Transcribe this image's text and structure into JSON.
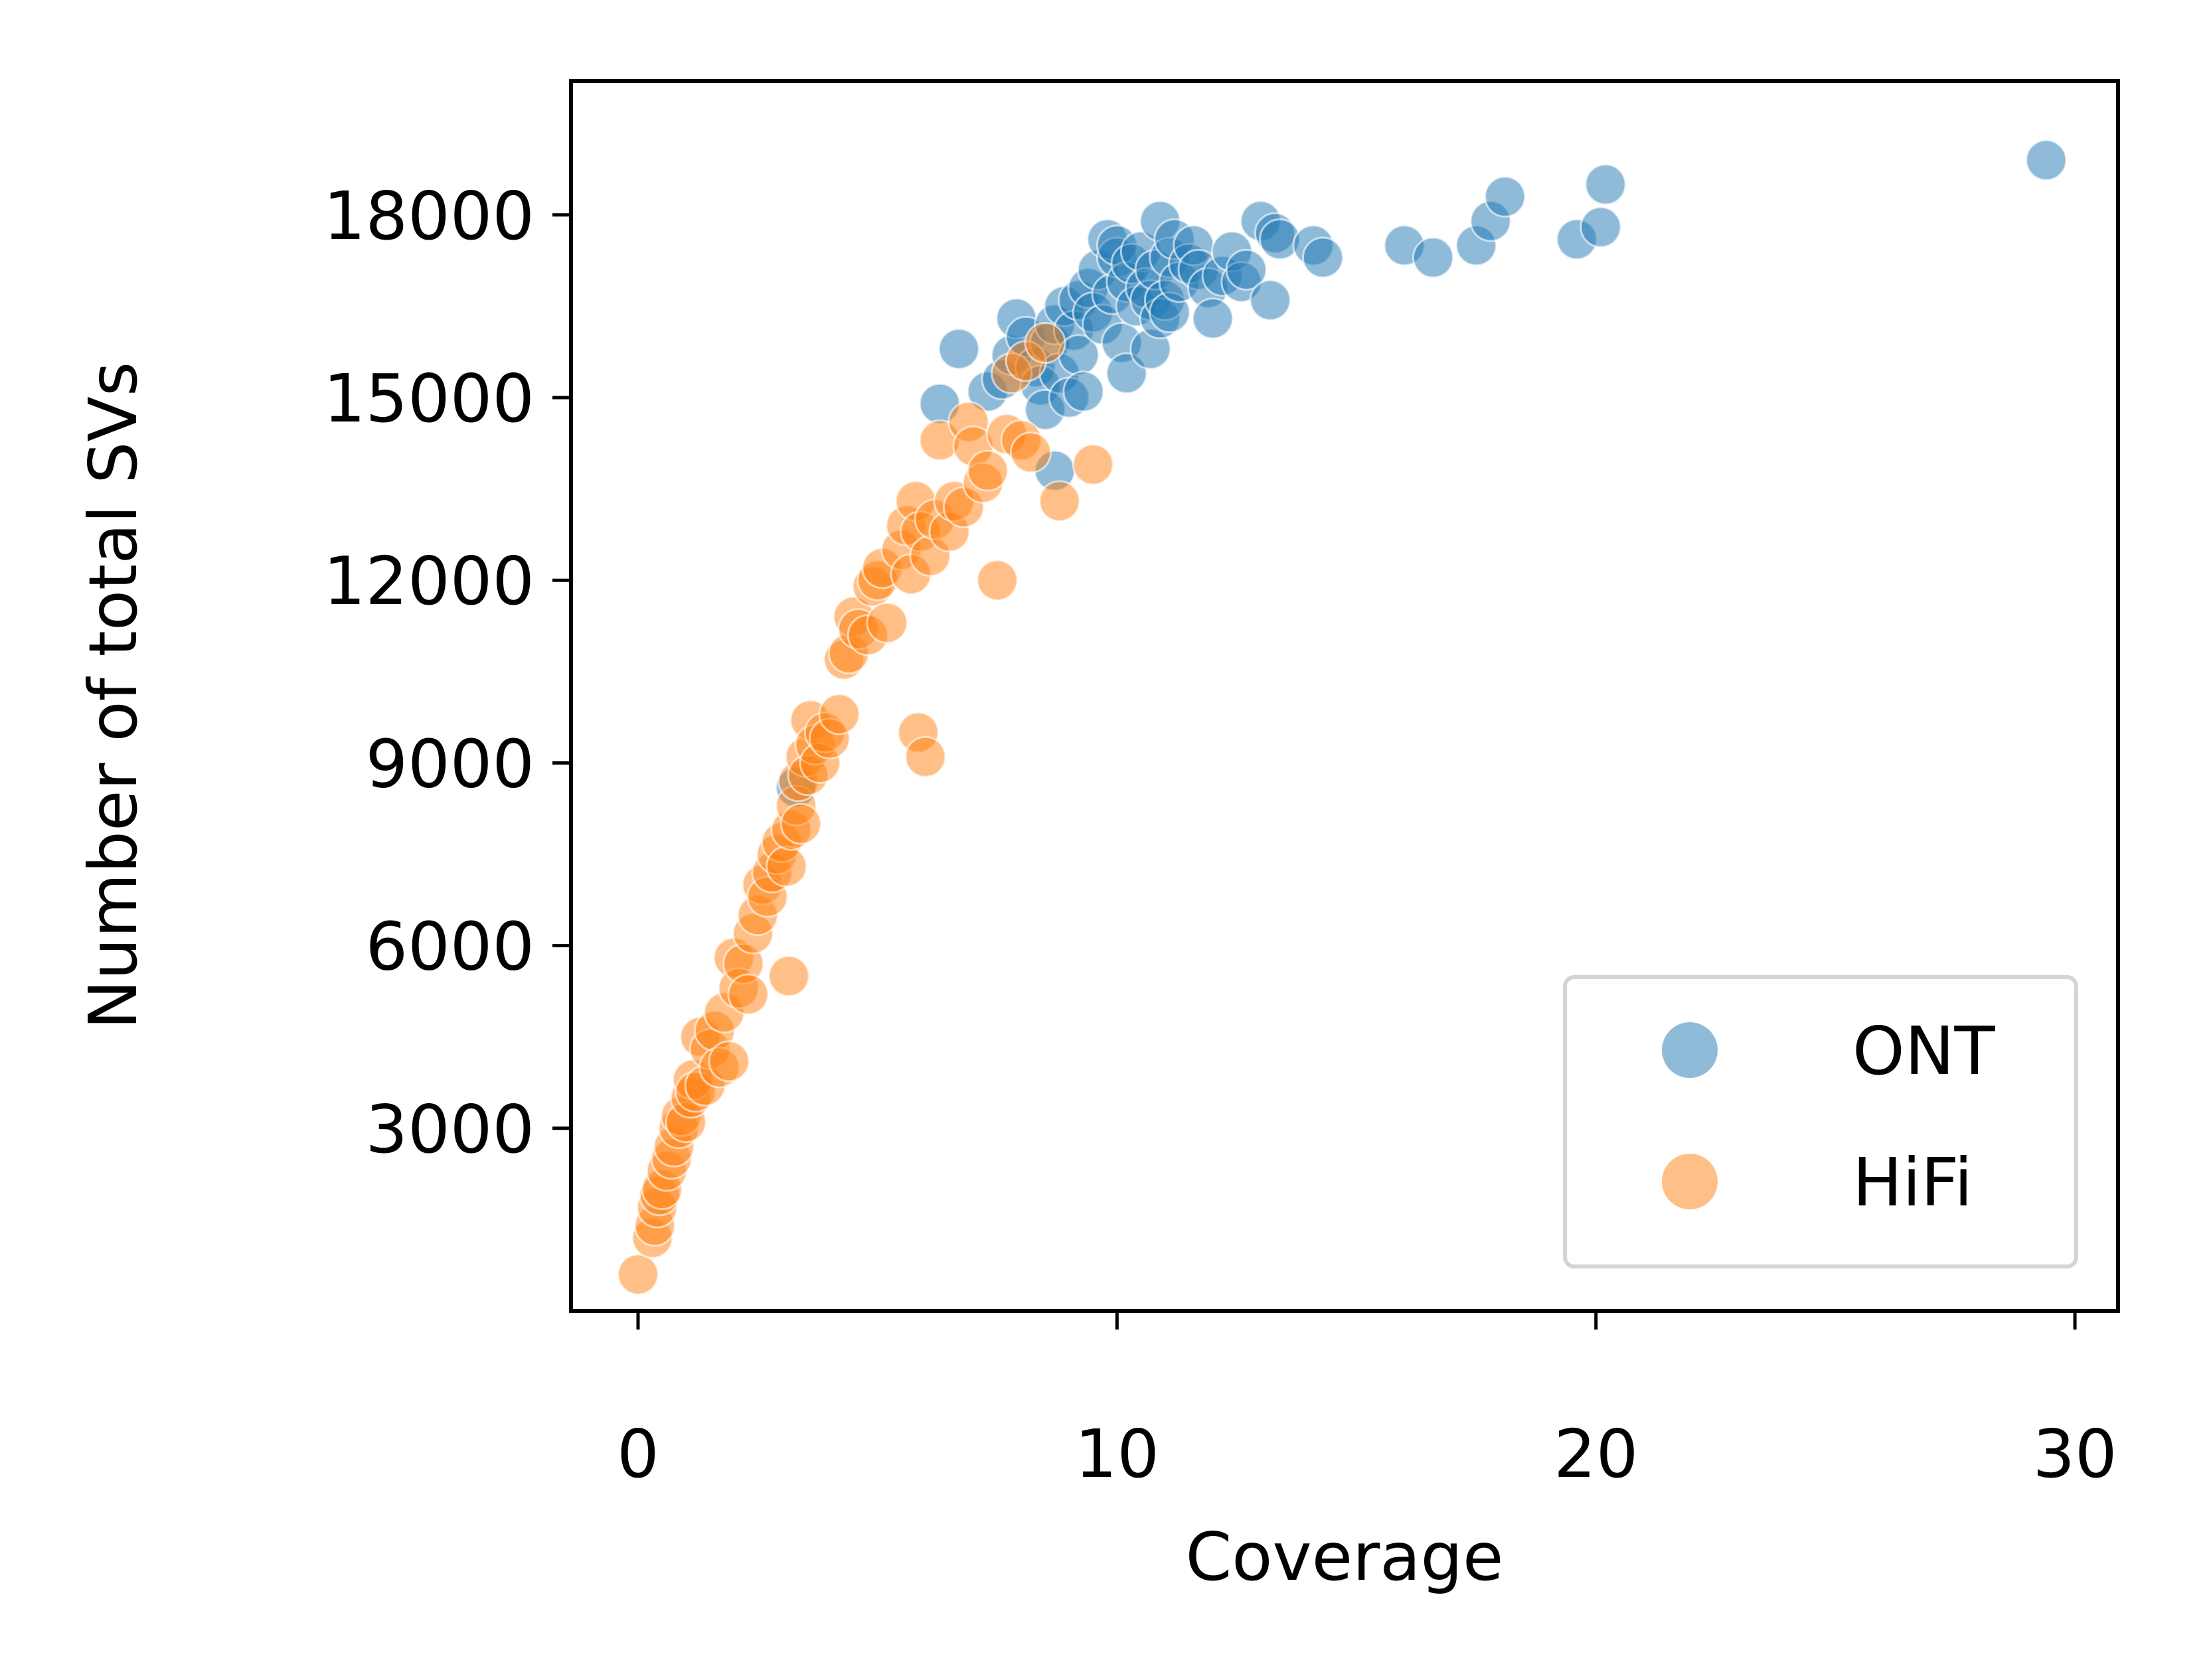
{
  "chart_data": {
    "type": "scatter",
    "title": "",
    "xlabel": "Coverage",
    "ylabel": "Number of total SVs",
    "xlim": [
      -1.4,
      30.9
    ],
    "ylim": [
      0,
      20200
    ],
    "xticks": [
      0,
      10,
      20,
      30
    ],
    "xtick_labels": [
      "0",
      "10",
      "20",
      "30"
    ],
    "yticks": [
      3000,
      6000,
      9000,
      12000,
      15000,
      18000
    ],
    "ytick_labels": [
      "3000",
      "6000",
      "9000",
      "12000",
      "15000",
      "18000"
    ],
    "grid": false,
    "legend": {
      "placement": "lower right"
    },
    "series": [
      {
        "name": "ONT",
        "color": "#1f77b4",
        "points": [
          [
            3.3,
            8600
          ],
          [
            6.3,
            14900
          ],
          [
            6.7,
            15800
          ],
          [
            7.3,
            15100
          ],
          [
            7.6,
            15300
          ],
          [
            7.8,
            15700
          ],
          [
            7.9,
            16300
          ],
          [
            8.1,
            16000
          ],
          [
            8.3,
            15500
          ],
          [
            8.4,
            15200
          ],
          [
            8.5,
            14800
          ],
          [
            8.6,
            15900
          ],
          [
            8.7,
            16200
          ],
          [
            8.7,
            13800
          ],
          [
            8.8,
            15400
          ],
          [
            8.9,
            16500
          ],
          [
            9.0,
            15000
          ],
          [
            9.1,
            16100
          ],
          [
            9.2,
            15700
          ],
          [
            9.2,
            16600
          ],
          [
            9.3,
            15100
          ],
          [
            9.4,
            16800
          ],
          [
            9.5,
            16400
          ],
          [
            9.6,
            17100
          ],
          [
            9.7,
            16200
          ],
          [
            9.8,
            17600
          ],
          [
            9.9,
            16700
          ],
          [
            10.0,
            17300
          ],
          [
            10.0,
            17500
          ],
          [
            10.1,
            15900
          ],
          [
            10.2,
            16900
          ],
          [
            10.2,
            15400
          ],
          [
            10.3,
            17200
          ],
          [
            10.4,
            16500
          ],
          [
            10.5,
            17400
          ],
          [
            10.6,
            16800
          ],
          [
            10.7,
            15800
          ],
          [
            10.7,
            16600
          ],
          [
            10.8,
            17100
          ],
          [
            10.9,
            17900
          ],
          [
            10.9,
            16300
          ],
          [
            11.0,
            16600
          ],
          [
            11.1,
            17300
          ],
          [
            11.1,
            16400
          ],
          [
            11.2,
            17600
          ],
          [
            11.3,
            16900
          ],
          [
            11.5,
            17200
          ],
          [
            11.6,
            17500
          ],
          [
            11.7,
            17100
          ],
          [
            11.9,
            16800
          ],
          [
            12.0,
            16300
          ],
          [
            12.2,
            17000
          ],
          [
            12.4,
            17400
          ],
          [
            12.6,
            16900
          ],
          [
            12.7,
            17100
          ],
          [
            13.0,
            17900
          ],
          [
            13.2,
            16600
          ],
          [
            13.3,
            17700
          ],
          [
            13.4,
            17600
          ],
          [
            14.1,
            17500
          ],
          [
            14.3,
            17300
          ],
          [
            16.0,
            17500
          ],
          [
            16.6,
            17300
          ],
          [
            17.5,
            17500
          ],
          [
            17.8,
            17900
          ],
          [
            18.1,
            18300
          ],
          [
            19.6,
            17600
          ],
          [
            20.1,
            17800
          ],
          [
            20.2,
            18500
          ],
          [
            29.4,
            18900
          ]
        ]
      },
      {
        "name": "HiFi",
        "color": "#ff7f0e",
        "points": [
          [
            0.0,
            600
          ],
          [
            0.3,
            1200
          ],
          [
            0.35,
            1400
          ],
          [
            0.4,
            1700
          ],
          [
            0.45,
            1900
          ],
          [
            0.5,
            2000
          ],
          [
            0.6,
            2300
          ],
          [
            0.7,
            2500
          ],
          [
            0.75,
            2700
          ],
          [
            0.85,
            3000
          ],
          [
            0.9,
            3200
          ],
          [
            1.0,
            3100
          ],
          [
            1.1,
            3500
          ],
          [
            1.15,
            3800
          ],
          [
            1.2,
            3600
          ],
          [
            1.3,
            4500
          ],
          [
            1.4,
            3700
          ],
          [
            1.5,
            4300
          ],
          [
            1.6,
            4600
          ],
          [
            1.7,
            4000
          ],
          [
            1.8,
            4900
          ],
          [
            1.9,
            4100
          ],
          [
            2.0,
            5800
          ],
          [
            2.1,
            5300
          ],
          [
            2.2,
            5700
          ],
          [
            2.3,
            5200
          ],
          [
            2.4,
            6200
          ],
          [
            2.5,
            6500
          ],
          [
            2.6,
            7000
          ],
          [
            2.7,
            6800
          ],
          [
            2.8,
            7200
          ],
          [
            2.9,
            7500
          ],
          [
            3.0,
            7700
          ],
          [
            3.1,
            7300
          ],
          [
            3.15,
            5500
          ],
          [
            3.2,
            7900
          ],
          [
            3.3,
            8300
          ],
          [
            3.35,
            8700
          ],
          [
            3.4,
            8000
          ],
          [
            3.5,
            9100
          ],
          [
            3.55,
            8800
          ],
          [
            3.6,
            9700
          ],
          [
            3.7,
            9300
          ],
          [
            3.8,
            9000
          ],
          [
            3.9,
            9500
          ],
          [
            4.0,
            9400
          ],
          [
            4.2,
            9800
          ],
          [
            4.3,
            10700
          ],
          [
            4.4,
            10800
          ],
          [
            4.5,
            11400
          ],
          [
            4.6,
            11200
          ],
          [
            4.8,
            11100
          ],
          [
            4.9,
            11900
          ],
          [
            5.0,
            12000
          ],
          [
            5.1,
            12200
          ],
          [
            5.2,
            11300
          ],
          [
            5.5,
            12500
          ],
          [
            5.6,
            12900
          ],
          [
            5.7,
            12100
          ],
          [
            5.8,
            13300
          ],
          [
            5.85,
            9500
          ],
          [
            5.9,
            12800
          ],
          [
            6.0,
            9100
          ],
          [
            6.1,
            12400
          ],
          [
            6.2,
            13000
          ],
          [
            6.3,
            14300
          ],
          [
            6.5,
            12800
          ],
          [
            6.6,
            13300
          ],
          [
            6.8,
            13200
          ],
          [
            6.9,
            14600
          ],
          [
            7.0,
            14200
          ],
          [
            7.2,
            13600
          ],
          [
            7.3,
            13800
          ],
          [
            7.5,
            12000
          ],
          [
            7.7,
            14400
          ],
          [
            7.8,
            15400
          ],
          [
            8.0,
            14300
          ],
          [
            8.1,
            15600
          ],
          [
            8.2,
            14100
          ],
          [
            8.5,
            15900
          ],
          [
            8.8,
            13300
          ],
          [
            9.5,
            13900
          ]
        ]
      }
    ]
  }
}
